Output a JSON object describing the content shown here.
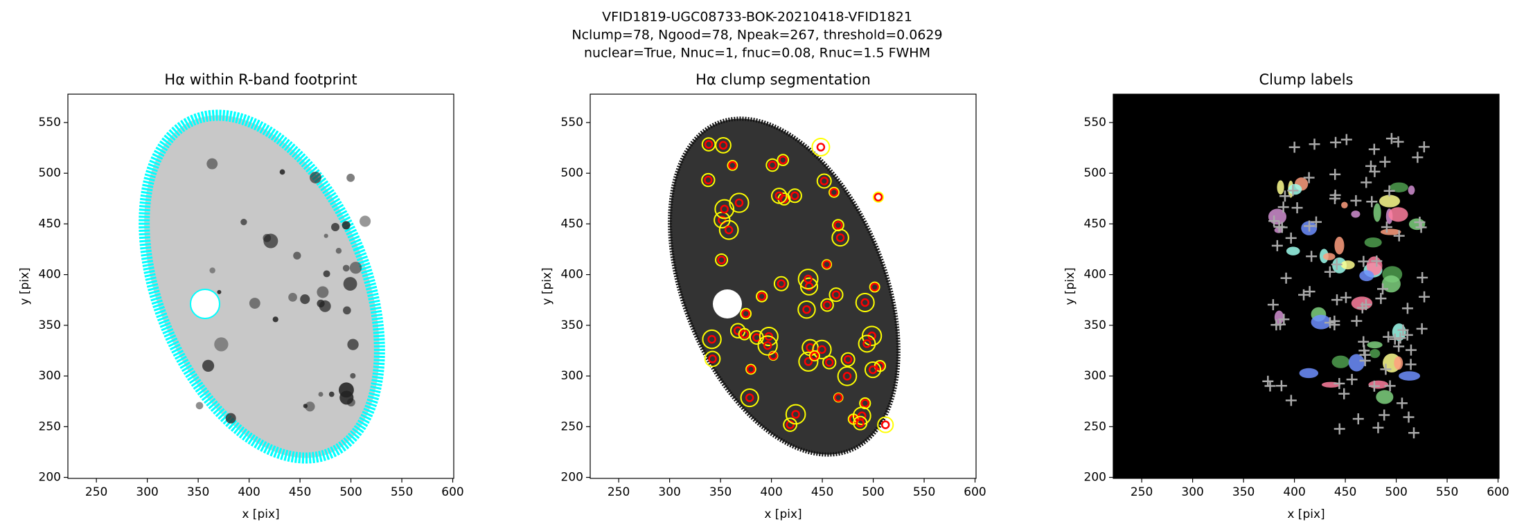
{
  "suptitle_lines": [
    "VFID1819-UGC08733-BOK-20210418-VFID1821",
    "Nclump=78, Ngood=78, Npeak=267, threshold=0.0629",
    "nuclear=True, Nnuc=1, fnuc=0.08, Rnuc=1.5 FWHM"
  ],
  "chart_data": [
    {
      "type": "image",
      "title": "Hα within R-band footprint",
      "xlabel": "x [pix]",
      "ylabel": "y [pix]",
      "background": "#ffffff",
      "xlim": [
        222,
        601
      ],
      "ylim": [
        199,
        578
      ],
      "xticks": [
        250,
        300,
        350,
        400,
        450,
        500,
        550,
        600
      ],
      "yticks": [
        200,
        250,
        300,
        350,
        400,
        450,
        500,
        550
      ]
    },
    {
      "type": "image",
      "title": "Hα clump segmentation",
      "xlabel": "x [pix]",
      "ylabel": "y [pix]",
      "background": "#ffffff",
      "xlim": [
        222,
        601
      ],
      "ylim": [
        199,
        578
      ],
      "xticks": [
        250,
        300,
        350,
        400,
        450,
        500,
        550,
        600
      ],
      "yticks": [
        200,
        250,
        300,
        350,
        400,
        450,
        500,
        550
      ]
    },
    {
      "type": "image",
      "title": "Clump labels",
      "xlabel": "x [pix]",
      "ylabel": "y [pix]",
      "background": "#000000",
      "xlim": [
        222,
        601
      ],
      "ylim": [
        199,
        578
      ],
      "xticks": [
        250,
        300,
        350,
        400,
        450,
        500,
        550,
        600
      ],
      "yticks": [
        200,
        250,
        300,
        350,
        400,
        450,
        500,
        550
      ]
    }
  ]
}
